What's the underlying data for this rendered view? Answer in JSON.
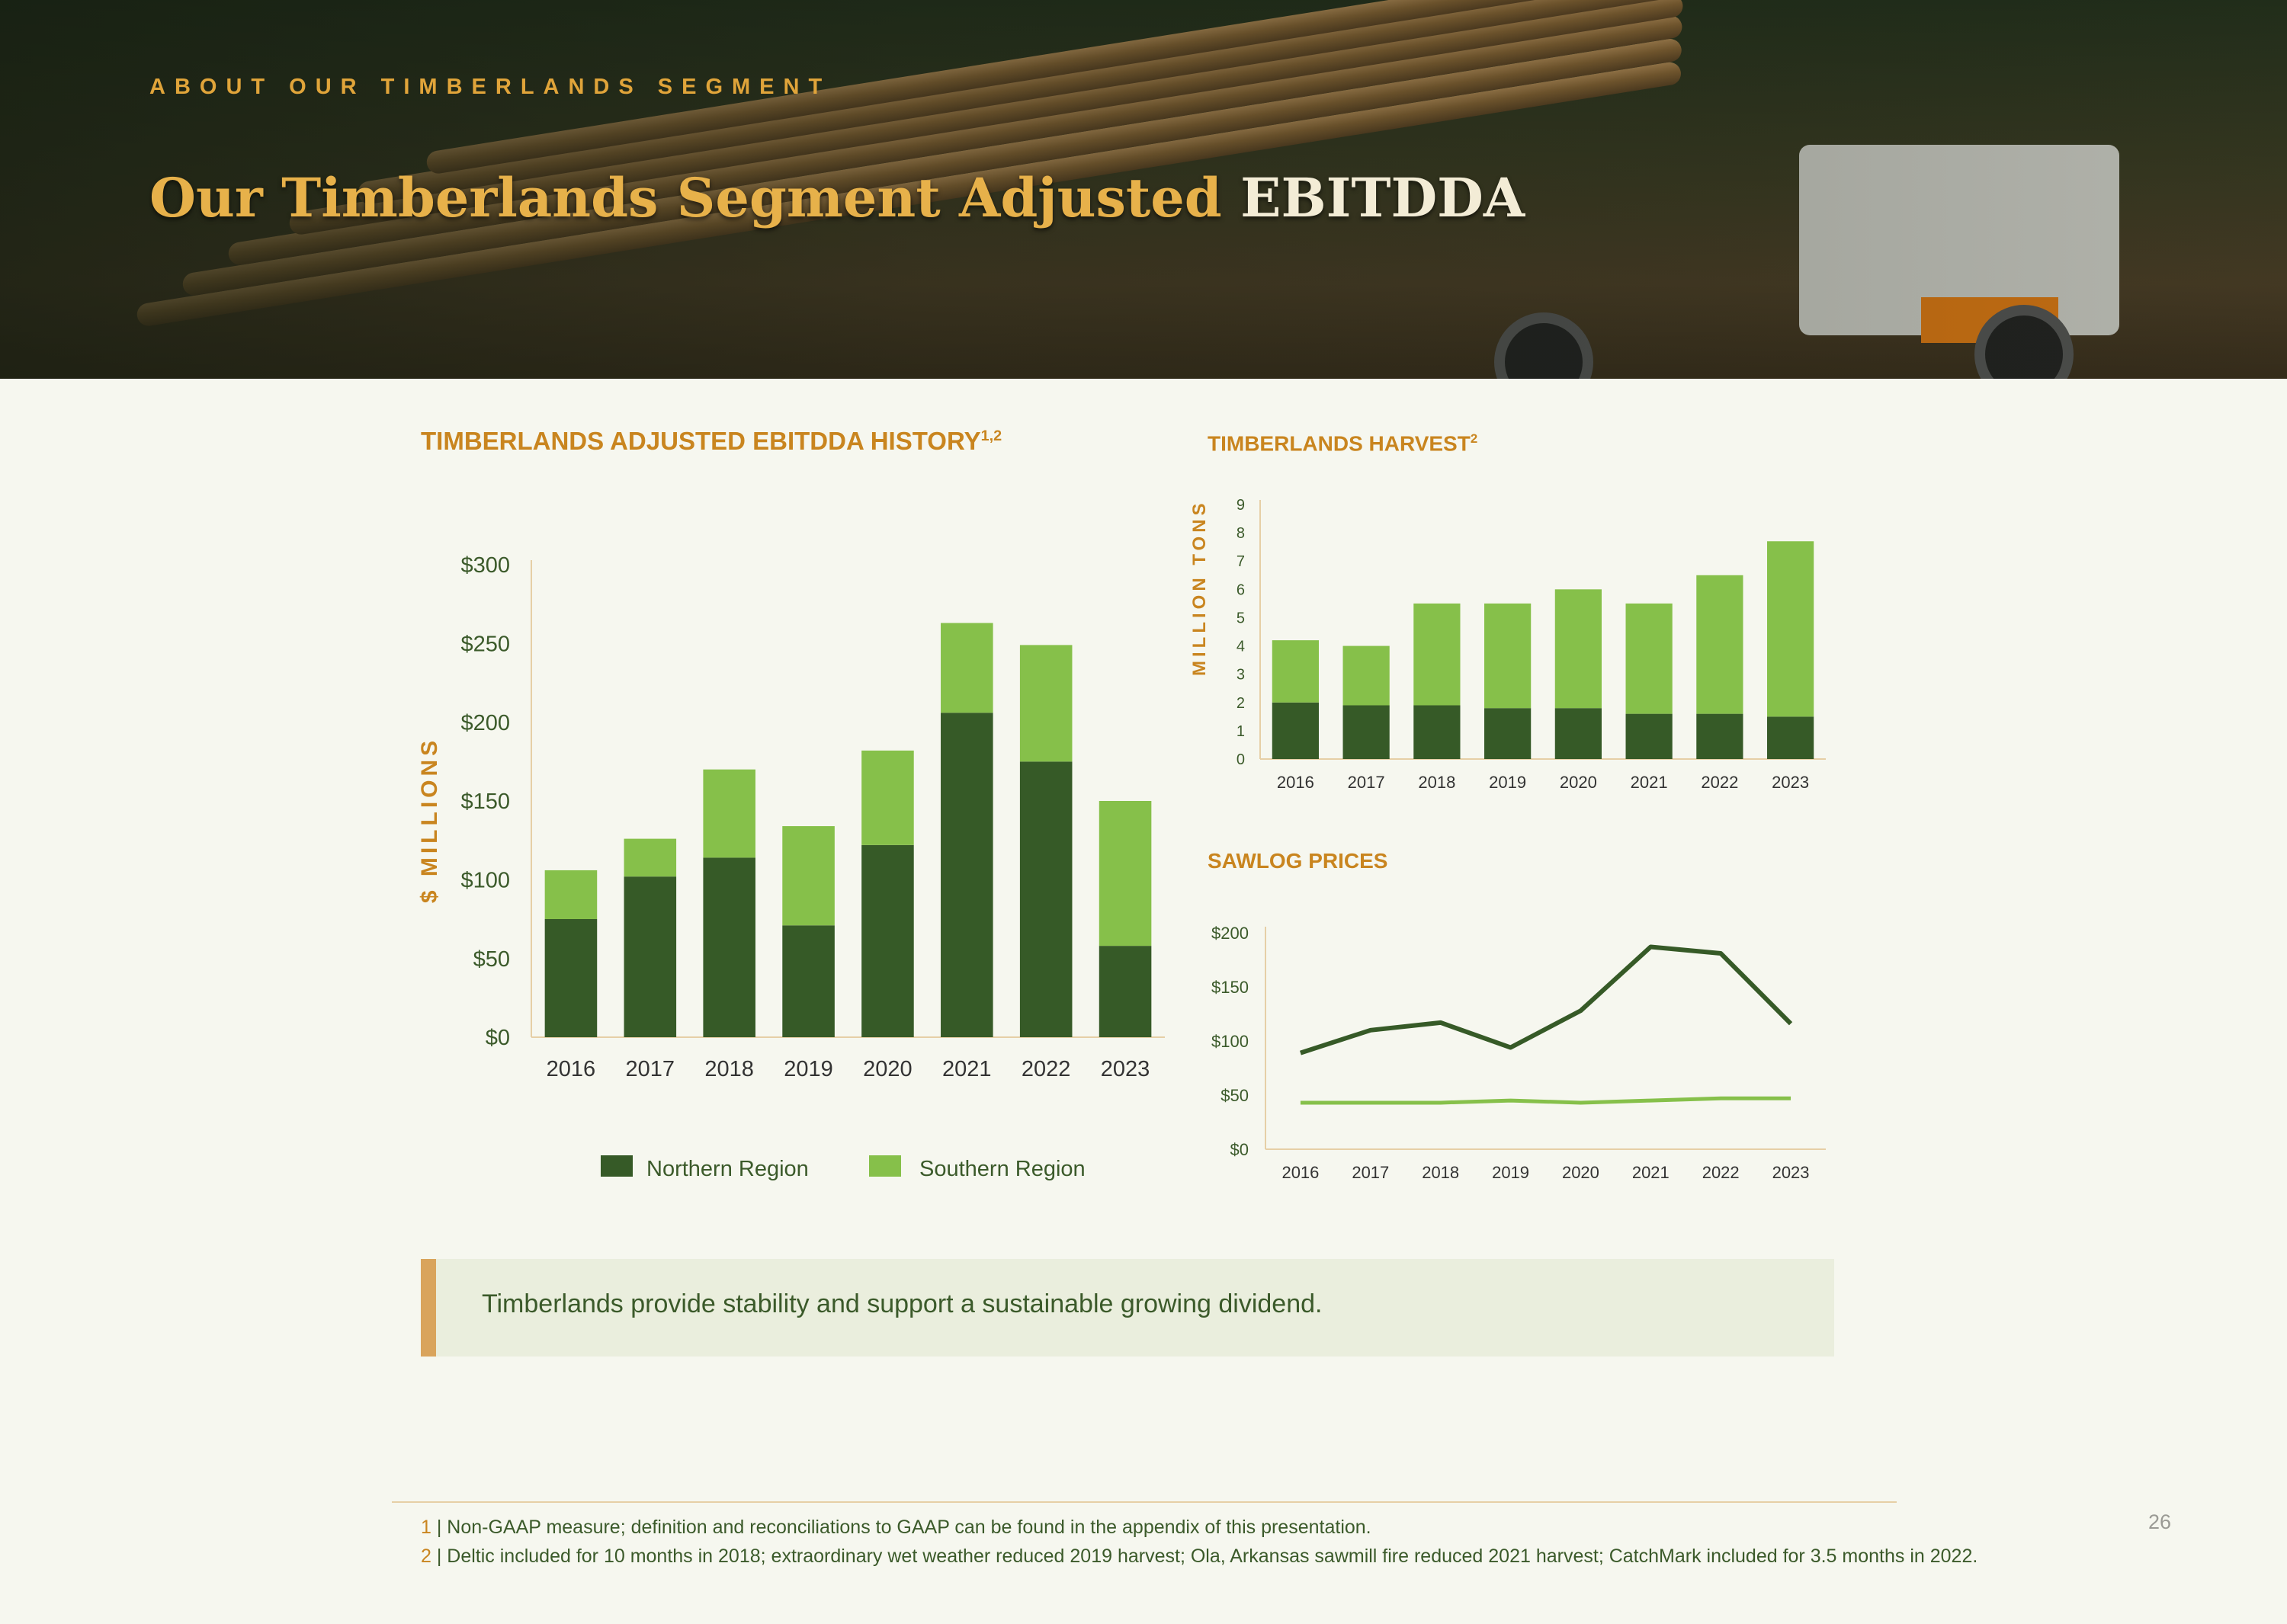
{
  "header": {
    "eyebrow": "ABOUT OUR TIMBERLANDS SEGMENT",
    "title_main": "Our Timberlands Segment Adjusted",
    "title_highlight": "EBITDDA"
  },
  "sections": {
    "ebitdda_title": "TIMBERLANDS ADJUSTED EBITDDA HISTORY",
    "ebitdda_title_sup": "1,2",
    "harvest_title": "TIMBERLANDS HARVEST",
    "harvest_title_sup": "2",
    "sawlog_title": "SAWLOG PRICES"
  },
  "legend": {
    "northern": "Northern Region",
    "southern": "Southern Region"
  },
  "colors": {
    "northern": "#365a27",
    "southern": "#86c04a",
    "accent": "#c9851f",
    "axis": "#e6cfa6"
  },
  "chart_data": [
    {
      "type": "bar",
      "stacked": true,
      "categories": [
        "2016",
        "2017",
        "2018",
        "2019",
        "2020",
        "2021",
        "2022",
        "2023"
      ],
      "series": [
        {
          "name": "Northern Region",
          "values": [
            75,
            102,
            114,
            71,
            122,
            206,
            175,
            58
          ]
        },
        {
          "name": "Southern Region",
          "values": [
            31,
            24,
            56,
            63,
            60,
            57,
            74,
            92
          ]
        }
      ],
      "ylabel": "$ MILLIONS",
      "ylim": [
        0,
        300
      ],
      "yticks": [
        "$0",
        "$50",
        "$100",
        "$150",
        "$200",
        "$250",
        "$300"
      ],
      "legend": "bottom",
      "grid": false
    },
    {
      "type": "bar",
      "stacked": true,
      "categories": [
        "2016",
        "2017",
        "2018",
        "2019",
        "2020",
        "2021",
        "2022",
        "2023"
      ],
      "series": [
        {
          "values": [
            2.0,
            1.9,
            1.9,
            1.8,
            1.8,
            1.6,
            1.6,
            1.5
          ]
        },
        {
          "values": [
            2.2,
            2.1,
            3.6,
            3.7,
            4.2,
            3.9,
            4.9,
            6.2
          ]
        }
      ],
      "ylabel": "MILLION TONS",
      "ylim": [
        0,
        9
      ],
      "yticks": [
        "0",
        "1",
        "2",
        "3",
        "4",
        "5",
        "6",
        "7",
        "8",
        "9"
      ],
      "grid": false
    },
    {
      "type": "line",
      "x": [
        "2016",
        "2017",
        "2018",
        "2019",
        "2020",
        "2021",
        "2022",
        "2023"
      ],
      "series": [
        {
          "values": [
            89,
            110,
            117,
            94,
            128,
            187,
            181,
            116
          ]
        },
        {
          "values": [
            43,
            43,
            43,
            45,
            43,
            45,
            47,
            47
          ]
        }
      ],
      "ylim": [
        0,
        200
      ],
      "yticks": [
        "$0",
        "$50",
        "$100",
        "$150",
        "$200"
      ],
      "grid": false
    }
  ],
  "callout": "Timberlands provide stability and support a sustainable growing dividend.",
  "footnotes": [
    {
      "num": "1",
      "text": " | Non-GAAP measure; definition and reconciliations to GAAP can be found in the appendix of this presentation."
    },
    {
      "num": "2",
      "text": " | Deltic included for 10 months in 2018; extraordinary wet weather reduced 2019 harvest; Ola, Arkansas sawmill fire reduced 2021 harvest; CatchMark included for 3.5 months in 2022."
    }
  ],
  "page_number": "26"
}
